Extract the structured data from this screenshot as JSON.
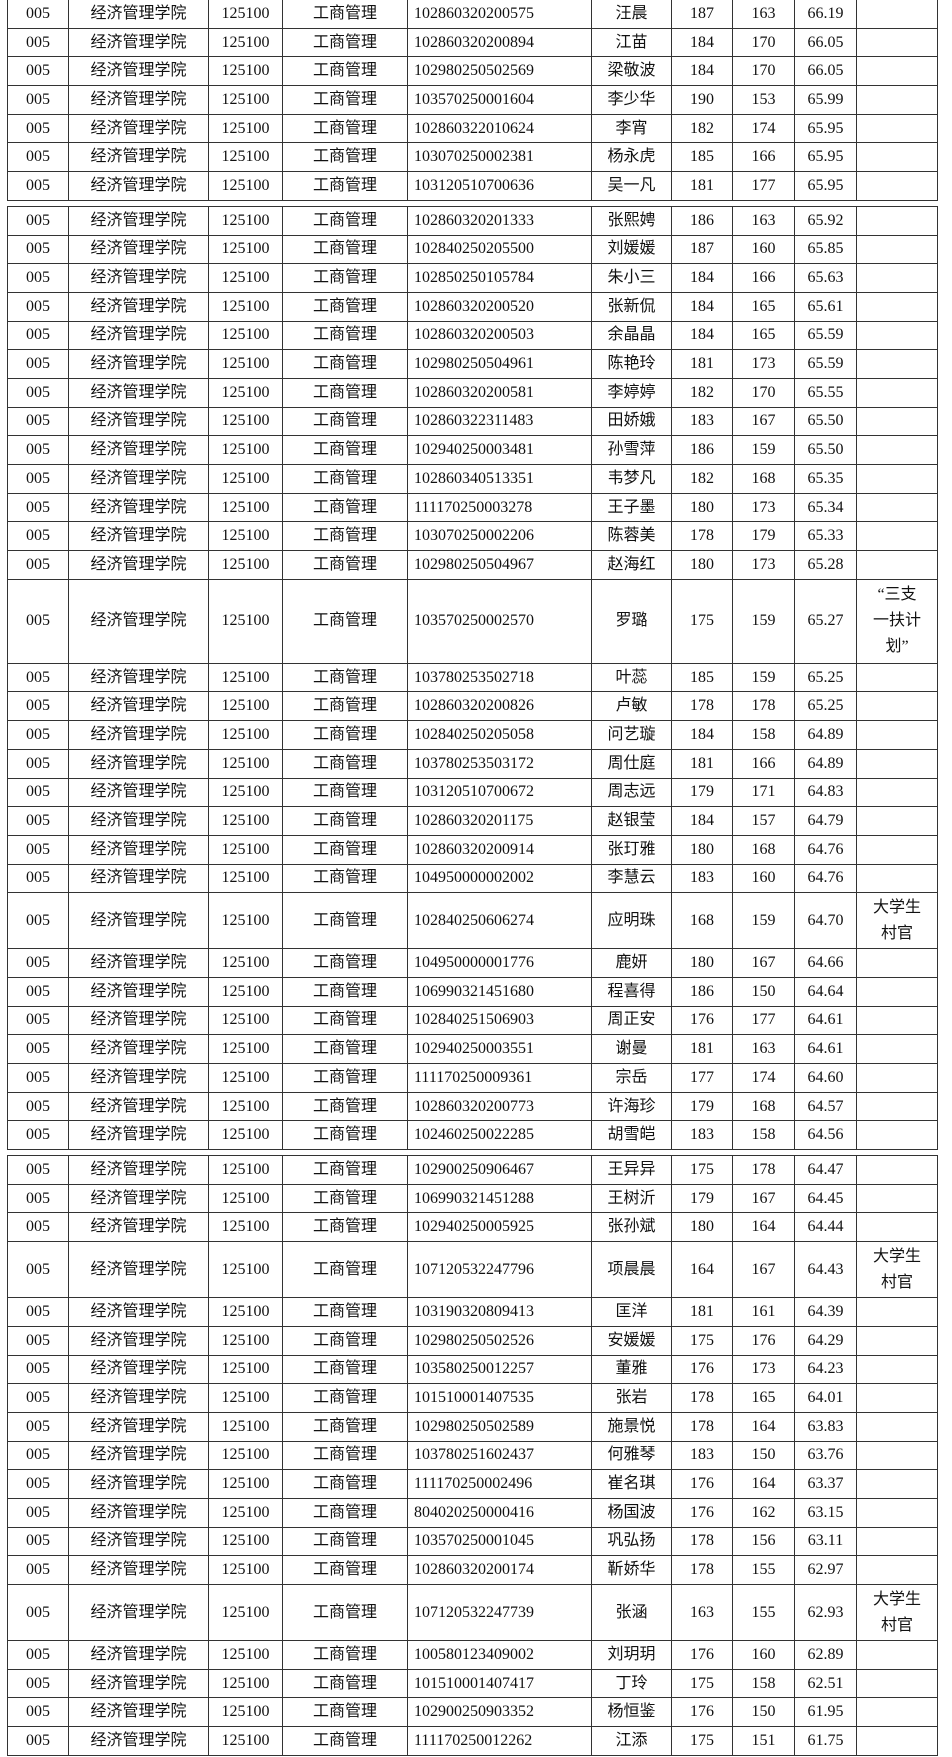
{
  "columns_common": {
    "code": "005",
    "college": "经济管理学院",
    "major_code": "125100",
    "major": "工商管理"
  },
  "blocks": [
    [
      {
        "id": "102860320200575",
        "name": "汪晨",
        "s1": "187",
        "s2": "163",
        "total": "66.19",
        "note": ""
      },
      {
        "id": "102860320200894",
        "name": "江苗",
        "s1": "184",
        "s2": "170",
        "total": "66.05",
        "note": ""
      },
      {
        "id": "102980250502569",
        "name": "梁敬波",
        "s1": "184",
        "s2": "170",
        "total": "66.05",
        "note": ""
      },
      {
        "id": "103570250001604",
        "name": "李少华",
        "s1": "190",
        "s2": "153",
        "total": "65.99",
        "note": ""
      },
      {
        "id": "102860322010624",
        "name": "李宵",
        "s1": "182",
        "s2": "174",
        "total": "65.95",
        "note": ""
      },
      {
        "id": "103070250002381",
        "name": "杨永虎",
        "s1": "185",
        "s2": "166",
        "total": "65.95",
        "note": ""
      },
      {
        "id": "103120510700636",
        "name": "吴一凡",
        "s1": "181",
        "s2": "177",
        "total": "65.95",
        "note": ""
      }
    ],
    [
      {
        "id": "102860320201333",
        "name": "张熙娉",
        "s1": "186",
        "s2": "163",
        "total": "65.92",
        "note": ""
      },
      {
        "id": "102840250205500",
        "name": "刘媛媛",
        "s1": "187",
        "s2": "160",
        "total": "65.85",
        "note": ""
      },
      {
        "id": "102850250105784",
        "name": "朱小三",
        "s1": "184",
        "s2": "166",
        "total": "65.63",
        "note": ""
      },
      {
        "id": "102860320200520",
        "name": "张新侃",
        "s1": "184",
        "s2": "165",
        "total": "65.61",
        "note": ""
      },
      {
        "id": "102860320200503",
        "name": "余晶晶",
        "s1": "184",
        "s2": "165",
        "total": "65.59",
        "note": ""
      },
      {
        "id": "102980250504961",
        "name": "陈艳玲",
        "s1": "181",
        "s2": "173",
        "total": "65.59",
        "note": ""
      },
      {
        "id": "102860320200581",
        "name": "李婷婷",
        "s1": "182",
        "s2": "170",
        "total": "65.55",
        "note": ""
      },
      {
        "id": "102860322311483",
        "name": "田娇娥",
        "s1": "183",
        "s2": "167",
        "total": "65.50",
        "note": ""
      },
      {
        "id": "102940250003481",
        "name": "孙雪萍",
        "s1": "186",
        "s2": "159",
        "total": "65.50",
        "note": ""
      },
      {
        "id": "102860340513351",
        "name": "韦梦凡",
        "s1": "182",
        "s2": "168",
        "total": "65.35",
        "note": ""
      },
      {
        "id": "111170250003278",
        "name": "王子墨",
        "s1": "180",
        "s2": "173",
        "total": "65.34",
        "note": ""
      },
      {
        "id": "103070250002206",
        "name": "陈蓉美",
        "s1": "178",
        "s2": "179",
        "total": "65.33",
        "note": ""
      },
      {
        "id": "102980250504967",
        "name": "赵海红",
        "s1": "180",
        "s2": "173",
        "total": "65.28",
        "note": ""
      },
      {
        "id": "103570250002570",
        "name": "罗璐",
        "s1": "175",
        "s2": "159",
        "total": "65.27",
        "note": "“三支一扶计划”"
      },
      {
        "id": "103780253502718",
        "name": "叶蕊",
        "s1": "185",
        "s2": "159",
        "total": "65.25",
        "note": ""
      },
      {
        "id": "102860320200826",
        "name": "卢敏",
        "s1": "178",
        "s2": "178",
        "total": "65.25",
        "note": ""
      },
      {
        "id": "102840250205058",
        "name": "问艺璇",
        "s1": "184",
        "s2": "158",
        "total": "64.89",
        "note": ""
      },
      {
        "id": "103780253503172",
        "name": "周仕庭",
        "s1": "181",
        "s2": "166",
        "total": "64.89",
        "note": ""
      },
      {
        "id": "103120510700672",
        "name": "周志远",
        "s1": "179",
        "s2": "171",
        "total": "64.83",
        "note": ""
      },
      {
        "id": "102860320201175",
        "name": "赵银莹",
        "s1": "184",
        "s2": "157",
        "total": "64.79",
        "note": ""
      },
      {
        "id": "102860320200914",
        "name": "张玎雅",
        "s1": "180",
        "s2": "168",
        "total": "64.76",
        "note": ""
      },
      {
        "id": "104950000002002",
        "name": "李慧云",
        "s1": "183",
        "s2": "160",
        "total": "64.76",
        "note": ""
      },
      {
        "id": "102840250606274",
        "name": "应明珠",
        "s1": "168",
        "s2": "159",
        "total": "64.70",
        "note": "大学生村官"
      },
      {
        "id": "104950000001776",
        "name": "鹿妍",
        "s1": "180",
        "s2": "167",
        "total": "64.66",
        "note": ""
      },
      {
        "id": "106990321451680",
        "name": "程喜得",
        "s1": "186",
        "s2": "150",
        "total": "64.64",
        "note": ""
      },
      {
        "id": "102840251506903",
        "name": "周正安",
        "s1": "176",
        "s2": "177",
        "total": "64.61",
        "note": ""
      },
      {
        "id": "102940250003551",
        "name": "谢曼",
        "s1": "181",
        "s2": "163",
        "total": "64.61",
        "note": ""
      },
      {
        "id": "111170250009361",
        "name": "宗岳",
        "s1": "177",
        "s2": "174",
        "total": "64.60",
        "note": ""
      },
      {
        "id": "102860320200773",
        "name": "许海珍",
        "s1": "179",
        "s2": "168",
        "total": "64.57",
        "note": ""
      },
      {
        "id": "102460250022285",
        "name": "胡雪皑",
        "s1": "183",
        "s2": "158",
        "total": "64.56",
        "note": ""
      }
    ],
    [
      {
        "id": "102900250906467",
        "name": "王异异",
        "s1": "175",
        "s2": "178",
        "total": "64.47",
        "note": ""
      },
      {
        "id": "106990321451288",
        "name": "王树沂",
        "s1": "179",
        "s2": "167",
        "total": "64.45",
        "note": ""
      },
      {
        "id": "102940250005925",
        "name": "张孙斌",
        "s1": "180",
        "s2": "164",
        "total": "64.44",
        "note": ""
      },
      {
        "id": "107120532247796",
        "name": "项晨晨",
        "s1": "164",
        "s2": "167",
        "total": "64.43",
        "note": "大学生村官"
      },
      {
        "id": "103190320809413",
        "name": "匡洋",
        "s1": "181",
        "s2": "161",
        "total": "64.39",
        "note": ""
      },
      {
        "id": "102980250502526",
        "name": "安媛媛",
        "s1": "175",
        "s2": "176",
        "total": "64.29",
        "note": ""
      },
      {
        "id": "103580250012257",
        "name": "董雅",
        "s1": "176",
        "s2": "173",
        "total": "64.23",
        "note": ""
      },
      {
        "id": "101510001407535",
        "name": "张岩",
        "s1": "178",
        "s2": "165",
        "total": "64.01",
        "note": ""
      },
      {
        "id": "102980250502589",
        "name": "施景悦",
        "s1": "178",
        "s2": "164",
        "total": "63.83",
        "note": ""
      },
      {
        "id": "103780251602437",
        "name": "何雅琴",
        "s1": "183",
        "s2": "150",
        "total": "63.76",
        "note": ""
      },
      {
        "id": "111170250002496",
        "name": "崔名琪",
        "s1": "176",
        "s2": "164",
        "total": "63.37",
        "note": ""
      },
      {
        "id": "804020250000416",
        "name": "杨国波",
        "s1": "176",
        "s2": "162",
        "total": "63.15",
        "note": ""
      },
      {
        "id": "103570250001045",
        "name": "巩弘扬",
        "s1": "178",
        "s2": "156",
        "total": "63.11",
        "note": ""
      },
      {
        "id": "102860320200174",
        "name": "靳娇华",
        "s1": "178",
        "s2": "155",
        "total": "62.97",
        "note": ""
      },
      {
        "id": "107120532247739",
        "name": "张涵",
        "s1": "163",
        "s2": "155",
        "total": "62.93",
        "note": "大学生村官"
      },
      {
        "id": "100580123409002",
        "name": "刘玥玥",
        "s1": "176",
        "s2": "160",
        "total": "62.89",
        "note": ""
      },
      {
        "id": "101510001407417",
        "name": "丁玲",
        "s1": "175",
        "s2": "158",
        "total": "62.51",
        "note": ""
      },
      {
        "id": "102900250903352",
        "name": "杨恒鉴",
        "s1": "176",
        "s2": "150",
        "total": "61.95",
        "note": ""
      },
      {
        "id": "111170250012262",
        "name": "江添",
        "s1": "175",
        "s2": "151",
        "total": "61.75",
        "note": ""
      }
    ]
  ]
}
